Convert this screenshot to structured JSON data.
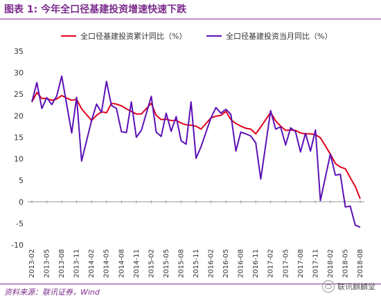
{
  "header": {
    "title": "图表 1:  今年全口径基建投资增速快速下跌"
  },
  "footer": {
    "source": "资料来源：联讯证券，Wind",
    "watermark": "联讯麒麟堂"
  },
  "colors": {
    "accent": "#7b2c8c",
    "cumulative": "#e0001a",
    "monthly": "#5b0fb5"
  },
  "chart_data": {
    "type": "line",
    "ylim": [
      -10,
      35
    ],
    "yticks": [
      -10,
      -5,
      0,
      5,
      10,
      15,
      20,
      25,
      30,
      35
    ],
    "x_tick_labels": [
      "2013-02",
      "2013-05",
      "2013-08",
      "2013-11",
      "2014-02",
      "2014-05",
      "2014-08",
      "2014-11",
      "2015-02",
      "2015-05",
      "2015-08",
      "2015-11",
      "2016-02",
      "2016-05",
      "2016-08",
      "2016-11",
      "2017-02",
      "2017-05",
      "2017-08",
      "2017-11",
      "2018-02",
      "2018-05",
      "2018-08"
    ],
    "legend_position": "top",
    "series": [
      {
        "name": "全口径基建投资累计同比（%）",
        "values": [
          {
            "x": "2013-02",
            "y": 23.2
          },
          {
            "x": "2013-03",
            "y": 25.4
          },
          {
            "x": "2013-04",
            "y": 24.0
          },
          {
            "x": "2013-05",
            "y": 24.0
          },
          {
            "x": "2013-06",
            "y": 23.6
          },
          {
            "x": "2013-07",
            "y": 23.9
          },
          {
            "x": "2013-08",
            "y": 24.7
          },
          {
            "x": "2013-09",
            "y": 24.1
          },
          {
            "x": "2013-10",
            "y": 23.6
          },
          {
            "x": "2013-11",
            "y": 23.8
          },
          {
            "x": "2013-12",
            "y": 21.6
          },
          {
            "x": "2014-02",
            "y": 18.9
          },
          {
            "x": "2014-03",
            "y": 20.1
          },
          {
            "x": "2014-04",
            "y": 20.9
          },
          {
            "x": "2014-05",
            "y": 20.7
          },
          {
            "x": "2014-06",
            "y": 22.9
          },
          {
            "x": "2014-07",
            "y": 22.7
          },
          {
            "x": "2014-08",
            "y": 22.3
          },
          {
            "x": "2014-09",
            "y": 21.6
          },
          {
            "x": "2014-10",
            "y": 21.0
          },
          {
            "x": "2014-11",
            "y": 20.4
          },
          {
            "x": "2014-12",
            "y": 20.4
          },
          {
            "x": "2015-02",
            "y": 22.9
          },
          {
            "x": "2015-03",
            "y": 20.1
          },
          {
            "x": "2015-04",
            "y": 19.1
          },
          {
            "x": "2015-05",
            "y": 19.2
          },
          {
            "x": "2015-06",
            "y": 18.9
          },
          {
            "x": "2015-07",
            "y": 18.9
          },
          {
            "x": "2015-08",
            "y": 18.3
          },
          {
            "x": "2015-09",
            "y": 17.9
          },
          {
            "x": "2015-10",
            "y": 17.8
          },
          {
            "x": "2015-11",
            "y": 17.6
          },
          {
            "x": "2015-12",
            "y": 16.9
          },
          {
            "x": "2016-02",
            "y": 19.5
          },
          {
            "x": "2016-03",
            "y": 19.9
          },
          {
            "x": "2016-04",
            "y": 20.1
          },
          {
            "x": "2016-05",
            "y": 21.0
          },
          {
            "x": "2016-06",
            "y": 19.1
          },
          {
            "x": "2016-07",
            "y": 18.2
          },
          {
            "x": "2016-08",
            "y": 17.6
          },
          {
            "x": "2016-09",
            "y": 17.1
          },
          {
            "x": "2016-10",
            "y": 16.9
          },
          {
            "x": "2016-11",
            "y": 15.8
          },
          {
            "x": "2016-12",
            "y": 17.4
          },
          {
            "x": "2017-02",
            "y": 20.8
          },
          {
            "x": "2017-03",
            "y": 18.8
          },
          {
            "x": "2017-04",
            "y": 17.6
          },
          {
            "x": "2017-05",
            "y": 16.6
          },
          {
            "x": "2017-06",
            "y": 16.7
          },
          {
            "x": "2017-07",
            "y": 16.6
          },
          {
            "x": "2017-08",
            "y": 16.0
          },
          {
            "x": "2017-09",
            "y": 15.8
          },
          {
            "x": "2017-10",
            "y": 15.8
          },
          {
            "x": "2017-11",
            "y": 15.6
          },
          {
            "x": "2017-12",
            "y": 14.9
          },
          {
            "x": "2018-02",
            "y": 11.1
          },
          {
            "x": "2018-03",
            "y": 8.9
          },
          {
            "x": "2018-04",
            "y": 8.1
          },
          {
            "x": "2018-05",
            "y": 7.7
          },
          {
            "x": "2018-06",
            "y": 5.6
          },
          {
            "x": "2018-07",
            "y": 3.6
          },
          {
            "x": "2018-08",
            "y": 0.7
          }
        ]
      },
      {
        "name": "全口径基建投资当月同比（%）",
        "values": [
          {
            "x": "2013-02",
            "y": 23.2
          },
          {
            "x": "2013-03",
            "y": 27.7
          },
          {
            "x": "2013-04",
            "y": 21.7
          },
          {
            "x": "2013-05",
            "y": 24.2
          },
          {
            "x": "2013-06",
            "y": 22.6
          },
          {
            "x": "2013-07",
            "y": 24.6
          },
          {
            "x": "2013-08",
            "y": 29.2
          },
          {
            "x": "2013-09",
            "y": 22.6
          },
          {
            "x": "2013-10",
            "y": 16.0
          },
          {
            "x": "2013-11",
            "y": 24.3
          },
          {
            "x": "2013-12",
            "y": 9.5
          },
          {
            "x": "2014-02",
            "y": 18.9
          },
          {
            "x": "2014-03",
            "y": 22.7
          },
          {
            "x": "2014-04",
            "y": 20.8
          },
          {
            "x": "2014-05",
            "y": 28.0
          },
          {
            "x": "2014-06",
            "y": 22.4
          },
          {
            "x": "2014-07",
            "y": 21.7
          },
          {
            "x": "2014-08",
            "y": 16.3
          },
          {
            "x": "2014-09",
            "y": 16.1
          },
          {
            "x": "2014-10",
            "y": 23.2
          },
          {
            "x": "2014-11",
            "y": 15.0
          },
          {
            "x": "2014-12",
            "y": 16.6
          },
          {
            "x": "2015-02",
            "y": 24.5
          },
          {
            "x": "2015-03",
            "y": 16.2
          },
          {
            "x": "2015-04",
            "y": 15.2
          },
          {
            "x": "2015-05",
            "y": 20.6
          },
          {
            "x": "2015-06",
            "y": 16.4
          },
          {
            "x": "2015-07",
            "y": 19.8
          },
          {
            "x": "2015-08",
            "y": 14.2
          },
          {
            "x": "2015-09",
            "y": 13.4
          },
          {
            "x": "2015-10",
            "y": 23.2
          },
          {
            "x": "2015-11",
            "y": 10.1
          },
          {
            "x": "2015-12",
            "y": 12.8
          },
          {
            "x": "2016-02",
            "y": 19.5
          },
          {
            "x": "2016-03",
            "y": 21.9
          },
          {
            "x": "2016-04",
            "y": 20.6
          },
          {
            "x": "2016-05",
            "y": 21.5
          },
          {
            "x": "2016-06",
            "y": 20.3
          },
          {
            "x": "2016-07",
            "y": 11.8
          },
          {
            "x": "2016-08",
            "y": 16.2
          },
          {
            "x": "2016-09",
            "y": 15.8
          },
          {
            "x": "2016-10",
            "y": 15.3
          },
          {
            "x": "2016-11",
            "y": 13.7
          },
          {
            "x": "2016-12",
            "y": 5.3
          },
          {
            "x": "2017-02",
            "y": 21.2
          },
          {
            "x": "2017-03",
            "y": 16.9
          },
          {
            "x": "2017-04",
            "y": 17.4
          },
          {
            "x": "2017-05",
            "y": 13.2
          },
          {
            "x": "2017-06",
            "y": 17.2
          },
          {
            "x": "2017-07",
            "y": 16.3
          },
          {
            "x": "2017-08",
            "y": 11.6
          },
          {
            "x": "2017-09",
            "y": 15.9
          },
          {
            "x": "2017-10",
            "y": 11.8
          },
          {
            "x": "2017-11",
            "y": 16.7
          },
          {
            "x": "2017-12",
            "y": 0.3
          },
          {
            "x": "2018-02",
            "y": 11.1
          },
          {
            "x": "2018-03",
            "y": 6.2
          },
          {
            "x": "2018-04",
            "y": 6.4
          },
          {
            "x": "2018-05",
            "y": -1.2
          },
          {
            "x": "2018-06",
            "y": -1.0
          },
          {
            "x": "2018-07",
            "y": -5.4
          },
          {
            "x": "2018-08",
            "y": -5.9
          }
        ]
      }
    ]
  }
}
